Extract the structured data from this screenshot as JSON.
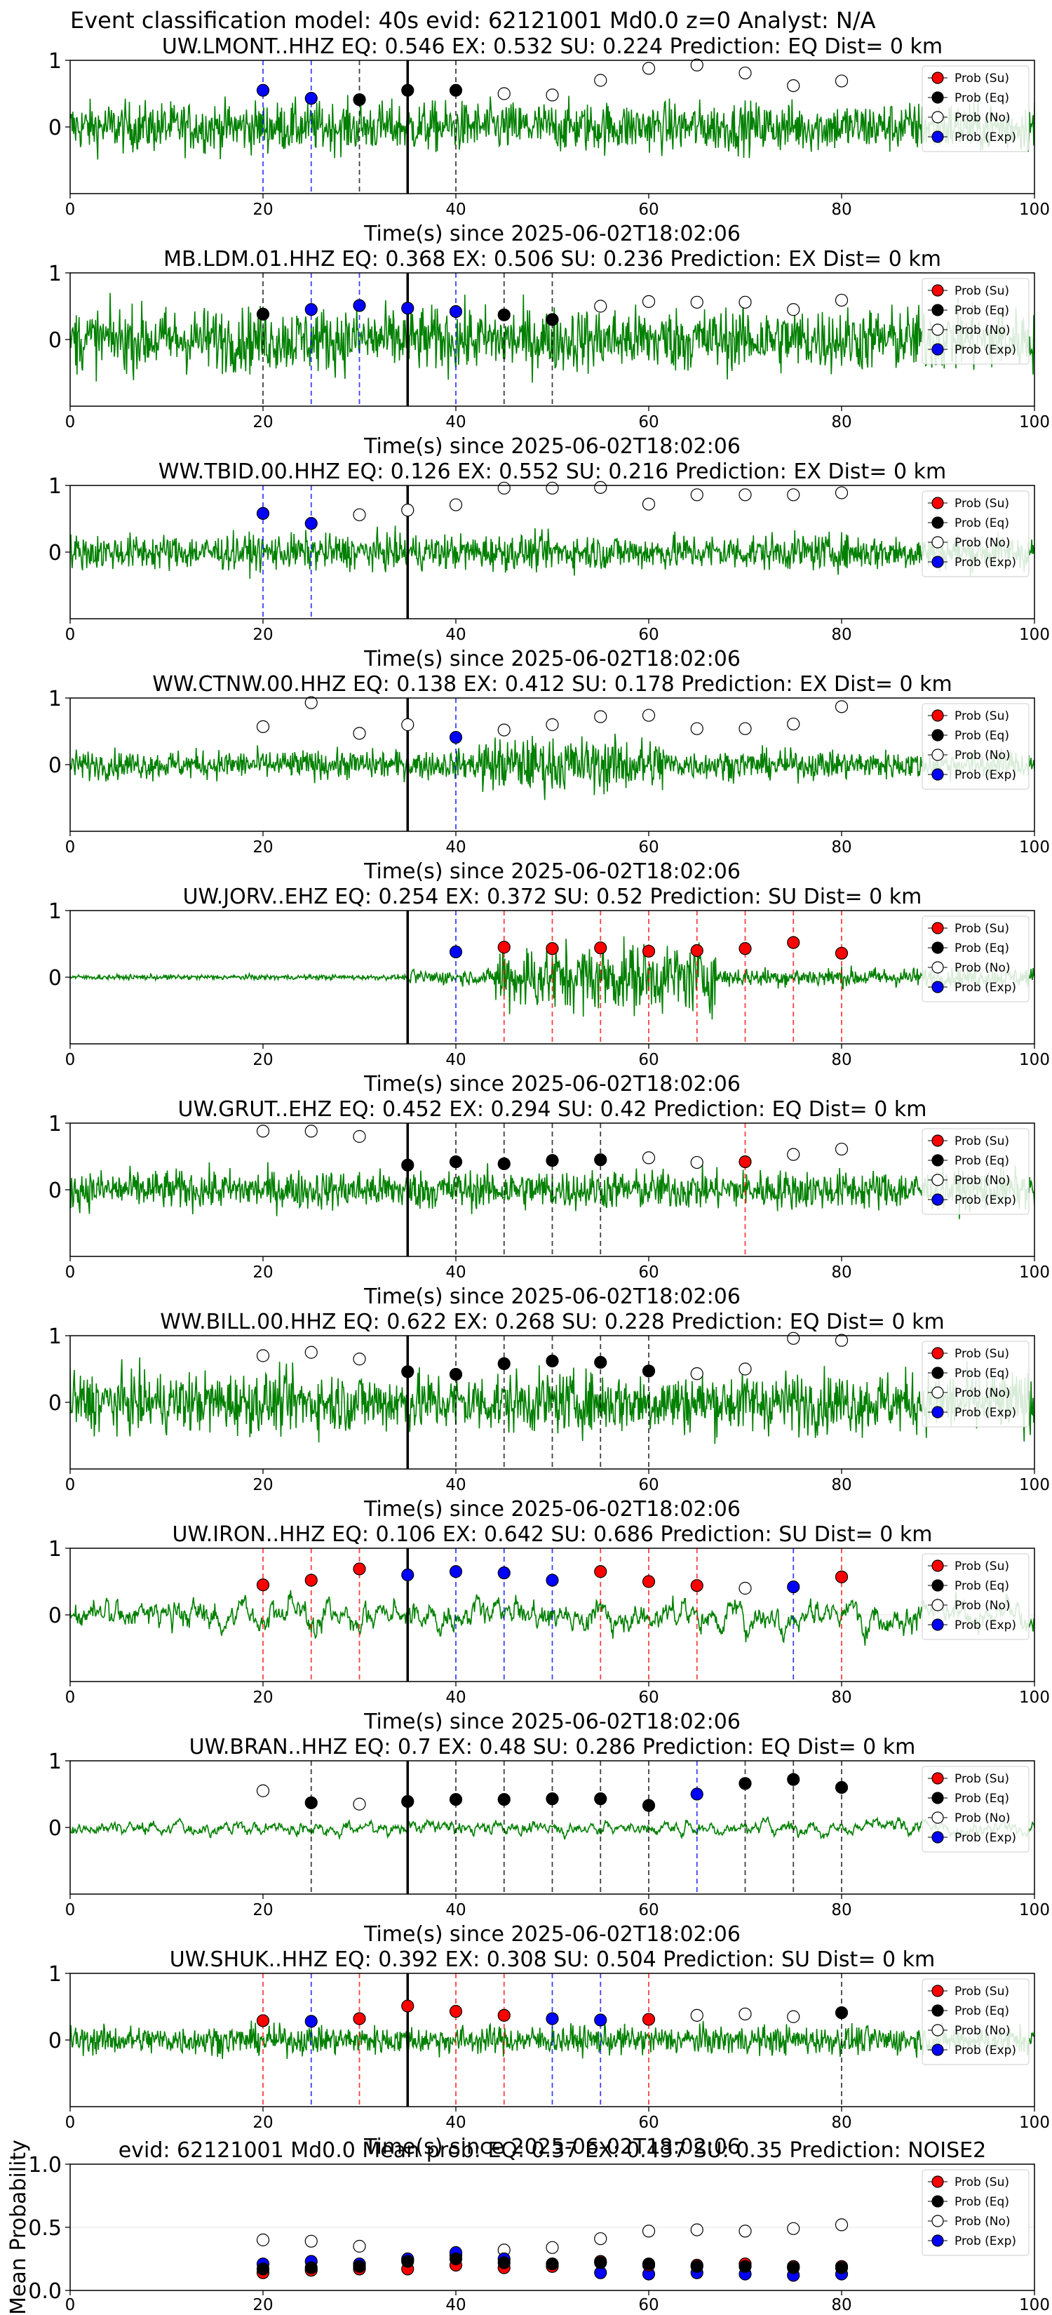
{
  "figure": {
    "suptitle": "Event classification model: 40s evid: 62121001 Md0.0 z=0 Analyst: N/A"
  },
  "legend_labels": [
    "Prob (Su)",
    "Prob (Eq)",
    "Prob (No)",
    "Prob (Exp)"
  ],
  "colors": {
    "su": "#ff0000",
    "eq": "#000000",
    "no": "#ffffff",
    "exp": "#0000ff",
    "waveform": "#008000",
    "origin_line": "#000000"
  },
  "chart_data": [
    {
      "type": "line",
      "title": "UW.LMONT..HHZ   EQ: 0.546  EX: 0.532  SU: 0.224   Prediction: EQ    Dist= 0 km",
      "xlabel": "Time(s) since 2025-06-02T18:02:06",
      "xlim": [
        0,
        100
      ],
      "ylim": [
        -1,
        1
      ],
      "xticks": [
        0,
        20,
        40,
        60,
        80,
        100
      ],
      "yticks": [
        0,
        1
      ],
      "origin_time": 35,
      "waveform": {
        "amplitude": 0.7,
        "profile": "uniform"
      },
      "points": [
        {
          "x": 20,
          "y": 0.55,
          "class": "exp"
        },
        {
          "x": 25,
          "y": 0.43,
          "class": "exp"
        },
        {
          "x": 30,
          "y": 0.41,
          "class": "eq"
        },
        {
          "x": 35,
          "y": 0.55,
          "class": "eq"
        },
        {
          "x": 40,
          "y": 0.55,
          "class": "eq"
        },
        {
          "x": 45,
          "y": 0.5,
          "class": "no"
        },
        {
          "x": 50,
          "y": 0.48,
          "class": "no"
        },
        {
          "x": 55,
          "y": 0.7,
          "class": "no"
        },
        {
          "x": 60,
          "y": 0.88,
          "class": "no"
        },
        {
          "x": 65,
          "y": 0.93,
          "class": "no"
        },
        {
          "x": 70,
          "y": 0.81,
          "class": "no"
        },
        {
          "x": 75,
          "y": 0.62,
          "class": "no"
        },
        {
          "x": 80,
          "y": 0.69,
          "class": "no"
        }
      ]
    },
    {
      "type": "line",
      "title": "MB.LDM.01.HHZ   EQ: 0.368  EX: 0.506  SU: 0.236   Prediction: EX    Dist= 0 km",
      "xlabel": "Time(s) since 2025-06-02T18:02:06",
      "xlim": [
        0,
        100
      ],
      "ylim": [
        -1,
        1
      ],
      "xticks": [
        0,
        20,
        40,
        60,
        80,
        100
      ],
      "yticks": [
        0,
        1
      ],
      "origin_time": 35,
      "waveform": {
        "amplitude": 0.9,
        "profile": "uniform"
      },
      "points": [
        {
          "x": 20,
          "y": 0.38,
          "class": "eq"
        },
        {
          "x": 25,
          "y": 0.45,
          "class": "exp"
        },
        {
          "x": 30,
          "y": 0.51,
          "class": "exp"
        },
        {
          "x": 35,
          "y": 0.47,
          "class": "exp"
        },
        {
          "x": 40,
          "y": 0.42,
          "class": "exp"
        },
        {
          "x": 45,
          "y": 0.37,
          "class": "eq"
        },
        {
          "x": 50,
          "y": 0.3,
          "class": "eq"
        },
        {
          "x": 55,
          "y": 0.5,
          "class": "no"
        },
        {
          "x": 60,
          "y": 0.57,
          "class": "no"
        },
        {
          "x": 65,
          "y": 0.56,
          "class": "no"
        },
        {
          "x": 70,
          "y": 0.56,
          "class": "no"
        },
        {
          "x": 75,
          "y": 0.45,
          "class": "no"
        },
        {
          "x": 80,
          "y": 0.59,
          "class": "no"
        }
      ]
    },
    {
      "type": "line",
      "title": "WW.TBID.00.HHZ   EQ: 0.126  EX: 0.552  SU: 0.216   Prediction: EX    Dist= 0 km",
      "xlabel": "Time(s) since 2025-06-02T18:02:06",
      "xlim": [
        0,
        100
      ],
      "ylim": [
        -1,
        1
      ],
      "xticks": [
        0,
        20,
        40,
        60,
        80,
        100
      ],
      "yticks": [
        0,
        1
      ],
      "origin_time": 35,
      "waveform": {
        "amplitude": 0.5,
        "profile": "uniform"
      },
      "points": [
        {
          "x": 20,
          "y": 0.58,
          "class": "exp"
        },
        {
          "x": 25,
          "y": 0.43,
          "class": "exp"
        },
        {
          "x": 30,
          "y": 0.56,
          "class": "no"
        },
        {
          "x": 35,
          "y": 0.63,
          "class": "no"
        },
        {
          "x": 40,
          "y": 0.71,
          "class": "no"
        },
        {
          "x": 45,
          "y": 0.96,
          "class": "no"
        },
        {
          "x": 50,
          "y": 0.96,
          "class": "no"
        },
        {
          "x": 55,
          "y": 0.97,
          "class": "no"
        },
        {
          "x": 60,
          "y": 0.72,
          "class": "no"
        },
        {
          "x": 65,
          "y": 0.86,
          "class": "no"
        },
        {
          "x": 70,
          "y": 0.86,
          "class": "no"
        },
        {
          "x": 75,
          "y": 0.86,
          "class": "no"
        },
        {
          "x": 80,
          "y": 0.89,
          "class": "no"
        }
      ]
    },
    {
      "type": "line",
      "title": "WW.CTNW.00.HHZ   EQ: 0.138  EX: 0.412  SU: 0.178   Prediction: EX    Dist= 0 km",
      "xlabel": "Time(s) since 2025-06-02T18:02:06",
      "xlim": [
        0,
        100
      ],
      "ylim": [
        -1,
        1
      ],
      "xticks": [
        0,
        20,
        40,
        60,
        80,
        100
      ],
      "yticks": [
        0,
        1
      ],
      "origin_time": 35,
      "waveform": {
        "amplitude": 0.4,
        "profile": "burst_mid"
      },
      "points": [
        {
          "x": 20,
          "y": 0.57,
          "class": "no"
        },
        {
          "x": 25,
          "y": 0.93,
          "class": "no"
        },
        {
          "x": 30,
          "y": 0.47,
          "class": "no"
        },
        {
          "x": 35,
          "y": 0.6,
          "class": "no"
        },
        {
          "x": 40,
          "y": 0.41,
          "class": "exp"
        },
        {
          "x": 45,
          "y": 0.52,
          "class": "no"
        },
        {
          "x": 50,
          "y": 0.6,
          "class": "no"
        },
        {
          "x": 55,
          "y": 0.72,
          "class": "no"
        },
        {
          "x": 60,
          "y": 0.74,
          "class": "no"
        },
        {
          "x": 65,
          "y": 0.54,
          "class": "no"
        },
        {
          "x": 70,
          "y": 0.54,
          "class": "no"
        },
        {
          "x": 75,
          "y": 0.61,
          "class": "no"
        },
        {
          "x": 80,
          "y": 0.87,
          "class": "no"
        }
      ]
    },
    {
      "type": "line",
      "title": "UW.JORV..EHZ   EQ: 0.254  EX: 0.372  SU: 0.52   Prediction: SU    Dist= 0 km",
      "xlabel": "Time(s) since 2025-06-02T18:02:06",
      "xlim": [
        0,
        100
      ],
      "ylim": [
        -1,
        1
      ],
      "xticks": [
        0,
        20,
        40,
        60,
        80,
        100
      ],
      "yticks": [
        0,
        1
      ],
      "origin_time": 35,
      "waveform": {
        "amplitude": 0.6,
        "profile": "quiet_then_burst"
      },
      "points": [
        {
          "x": 40,
          "y": 0.38,
          "class": "exp"
        },
        {
          "x": 45,
          "y": 0.45,
          "class": "su"
        },
        {
          "x": 50,
          "y": 0.43,
          "class": "su"
        },
        {
          "x": 55,
          "y": 0.44,
          "class": "su"
        },
        {
          "x": 60,
          "y": 0.39,
          "class": "su"
        },
        {
          "x": 65,
          "y": 0.4,
          "class": "su"
        },
        {
          "x": 70,
          "y": 0.43,
          "class": "su"
        },
        {
          "x": 75,
          "y": 0.52,
          "class": "su"
        },
        {
          "x": 80,
          "y": 0.36,
          "class": "su"
        }
      ]
    },
    {
      "type": "line",
      "title": "UW.GRUT..EHZ   EQ: 0.452  EX: 0.294  SU: 0.42   Prediction: EQ    Dist= 0 km",
      "xlabel": "Time(s) since 2025-06-02T18:02:06",
      "xlim": [
        0,
        100
      ],
      "ylim": [
        -1,
        1
      ],
      "xticks": [
        0,
        20,
        40,
        60,
        80,
        100
      ],
      "yticks": [
        0,
        1
      ],
      "origin_time": 35,
      "waveform": {
        "amplitude": 0.55,
        "profile": "uniform"
      },
      "points": [
        {
          "x": 20,
          "y": 0.88,
          "class": "no"
        },
        {
          "x": 25,
          "y": 0.88,
          "class": "no"
        },
        {
          "x": 30,
          "y": 0.8,
          "class": "no"
        },
        {
          "x": 35,
          "y": 0.37,
          "class": "eq"
        },
        {
          "x": 40,
          "y": 0.42,
          "class": "eq"
        },
        {
          "x": 45,
          "y": 0.39,
          "class": "eq"
        },
        {
          "x": 50,
          "y": 0.44,
          "class": "eq"
        },
        {
          "x": 55,
          "y": 0.45,
          "class": "eq"
        },
        {
          "x": 60,
          "y": 0.48,
          "class": "no"
        },
        {
          "x": 65,
          "y": 0.41,
          "class": "no"
        },
        {
          "x": 70,
          "y": 0.42,
          "class": "su"
        },
        {
          "x": 75,
          "y": 0.53,
          "class": "no"
        },
        {
          "x": 80,
          "y": 0.61,
          "class": "no"
        }
      ]
    },
    {
      "type": "line",
      "title": "WW.BILL.00.HHZ   EQ: 0.622  EX: 0.268  SU: 0.228   Prediction: EQ    Dist= 0 km",
      "xlabel": "Time(s) since 2025-06-02T18:02:06",
      "xlim": [
        0,
        100
      ],
      "ylim": [
        -1,
        1
      ],
      "xticks": [
        0,
        20,
        40,
        60,
        80,
        100
      ],
      "yticks": [
        0,
        1
      ],
      "origin_time": 35,
      "waveform": {
        "amplitude": 0.85,
        "profile": "uniform"
      },
      "points": [
        {
          "x": 20,
          "y": 0.7,
          "class": "no"
        },
        {
          "x": 25,
          "y": 0.75,
          "class": "no"
        },
        {
          "x": 30,
          "y": 0.65,
          "class": "no"
        },
        {
          "x": 35,
          "y": 0.46,
          "class": "eq"
        },
        {
          "x": 40,
          "y": 0.42,
          "class": "eq"
        },
        {
          "x": 45,
          "y": 0.58,
          "class": "eq"
        },
        {
          "x": 50,
          "y": 0.62,
          "class": "eq"
        },
        {
          "x": 55,
          "y": 0.6,
          "class": "eq"
        },
        {
          "x": 60,
          "y": 0.47,
          "class": "eq"
        },
        {
          "x": 65,
          "y": 0.43,
          "class": "no"
        },
        {
          "x": 70,
          "y": 0.5,
          "class": "no"
        },
        {
          "x": 75,
          "y": 0.96,
          "class": "no"
        },
        {
          "x": 80,
          "y": 0.93,
          "class": "no"
        }
      ]
    },
    {
      "type": "line",
      "title": "UW.IRON..HHZ   EQ: 0.106  EX: 0.642  SU: 0.686   Prediction: SU    Dist= 0 km",
      "xlabel": "Time(s) since 2025-06-02T18:02:06",
      "xlim": [
        0,
        100
      ],
      "ylim": [
        -1,
        1
      ],
      "xticks": [
        0,
        20,
        40,
        60,
        80,
        100
      ],
      "yticks": [
        0,
        1
      ],
      "origin_time": 35,
      "waveform": {
        "amplitude": 0.45,
        "profile": "smooth"
      },
      "points": [
        {
          "x": 20,
          "y": 0.45,
          "class": "su"
        },
        {
          "x": 25,
          "y": 0.52,
          "class": "su"
        },
        {
          "x": 30,
          "y": 0.69,
          "class": "su"
        },
        {
          "x": 35,
          "y": 0.6,
          "class": "exp"
        },
        {
          "x": 40,
          "y": 0.65,
          "class": "exp"
        },
        {
          "x": 45,
          "y": 0.63,
          "class": "exp"
        },
        {
          "x": 50,
          "y": 0.52,
          "class": "exp"
        },
        {
          "x": 55,
          "y": 0.65,
          "class": "su"
        },
        {
          "x": 60,
          "y": 0.5,
          "class": "su"
        },
        {
          "x": 65,
          "y": 0.44,
          "class": "su"
        },
        {
          "x": 70,
          "y": 0.4,
          "class": "no"
        },
        {
          "x": 75,
          "y": 0.42,
          "class": "exp"
        },
        {
          "x": 80,
          "y": 0.57,
          "class": "su"
        }
      ]
    },
    {
      "type": "line",
      "title": "UW.BRAN..HHZ   EQ: 0.7  EX: 0.48  SU: 0.286   Prediction: EQ    Dist= 0 km",
      "xlabel": "Time(s) since 2025-06-02T18:02:06",
      "xlim": [
        0,
        100
      ],
      "ylim": [
        -1,
        1
      ],
      "xticks": [
        0,
        20,
        40,
        60,
        80,
        100
      ],
      "yticks": [
        0,
        1
      ],
      "origin_time": 35,
      "waveform": {
        "amplitude": 0.2,
        "profile": "smooth"
      },
      "points": [
        {
          "x": 20,
          "y": 0.55,
          "class": "no"
        },
        {
          "x": 25,
          "y": 0.37,
          "class": "eq"
        },
        {
          "x": 30,
          "y": 0.35,
          "class": "no"
        },
        {
          "x": 35,
          "y": 0.39,
          "class": "eq"
        },
        {
          "x": 40,
          "y": 0.42,
          "class": "eq"
        },
        {
          "x": 45,
          "y": 0.42,
          "class": "eq"
        },
        {
          "x": 50,
          "y": 0.43,
          "class": "eq"
        },
        {
          "x": 55,
          "y": 0.43,
          "class": "eq"
        },
        {
          "x": 60,
          "y": 0.33,
          "class": "eq"
        },
        {
          "x": 65,
          "y": 0.5,
          "class": "exp"
        },
        {
          "x": 70,
          "y": 0.66,
          "class": "eq"
        },
        {
          "x": 75,
          "y": 0.72,
          "class": "eq"
        },
        {
          "x": 80,
          "y": 0.6,
          "class": "eq"
        }
      ]
    },
    {
      "type": "line",
      "title": "UW.SHUK..HHZ   EQ: 0.392  EX: 0.308  SU: 0.504   Prediction: SU    Dist= 0 km",
      "xlabel": "Time(s) since 2025-06-02T18:02:06",
      "xlim": [
        0,
        100
      ],
      "ylim": [
        -1,
        1
      ],
      "xticks": [
        0,
        20,
        40,
        60,
        80,
        100
      ],
      "yticks": [
        0,
        1
      ],
      "origin_time": 35,
      "waveform": {
        "amplitude": 0.4,
        "profile": "uniform"
      },
      "points": [
        {
          "x": 20,
          "y": 0.29,
          "class": "su"
        },
        {
          "x": 25,
          "y": 0.28,
          "class": "exp"
        },
        {
          "x": 30,
          "y": 0.32,
          "class": "su"
        },
        {
          "x": 35,
          "y": 0.51,
          "class": "su"
        },
        {
          "x": 40,
          "y": 0.43,
          "class": "su"
        },
        {
          "x": 45,
          "y": 0.37,
          "class": "su"
        },
        {
          "x": 50,
          "y": 0.32,
          "class": "exp"
        },
        {
          "x": 55,
          "y": 0.3,
          "class": "exp"
        },
        {
          "x": 60,
          "y": 0.31,
          "class": "su"
        },
        {
          "x": 65,
          "y": 0.37,
          "class": "no"
        },
        {
          "x": 70,
          "y": 0.39,
          "class": "no"
        },
        {
          "x": 75,
          "y": 0.35,
          "class": "no"
        },
        {
          "x": 80,
          "y": 0.41,
          "class": "eq"
        }
      ]
    },
    {
      "type": "scatter",
      "title": "evid: 62121001  Md0.0    Mean prob:   EQ: 0.37  EX: 0.437  SU: 0.35   Prediction: NOISE2",
      "xlabel": "",
      "ylabel": "Mean Probability",
      "xlim": [
        0,
        100
      ],
      "ylim": [
        0,
        1
      ],
      "xticks": [
        0,
        20,
        40,
        60,
        80,
        100
      ],
      "yticks": [
        0.0,
        0.5,
        1.0
      ],
      "x": [
        20,
        25,
        30,
        35,
        40,
        45,
        50,
        55,
        60,
        65,
        70,
        75,
        80
      ],
      "series": [
        {
          "name": "Prob (No)",
          "class": "no",
          "values": [
            0.4,
            0.39,
            0.35,
            0.24,
            0.28,
            0.32,
            0.34,
            0.41,
            0.47,
            0.48,
            0.47,
            0.49,
            0.52
          ]
        },
        {
          "name": "Prob (Exp)",
          "class": "exp",
          "values": [
            0.21,
            0.23,
            0.21,
            0.25,
            0.3,
            0.25,
            0.21,
            0.14,
            0.13,
            0.14,
            0.13,
            0.12,
            0.13
          ]
        },
        {
          "name": "Prob (Su)",
          "class": "su",
          "values": [
            0.14,
            0.16,
            0.17,
            0.17,
            0.2,
            0.18,
            0.19,
            0.23,
            0.2,
            0.2,
            0.21,
            0.19,
            0.19
          ]
        },
        {
          "name": "Prob (Eq)",
          "class": "eq",
          "values": [
            0.17,
            0.18,
            0.19,
            0.23,
            0.25,
            0.22,
            0.21,
            0.22,
            0.21,
            0.19,
            0.19,
            0.18,
            0.18
          ]
        }
      ]
    }
  ]
}
